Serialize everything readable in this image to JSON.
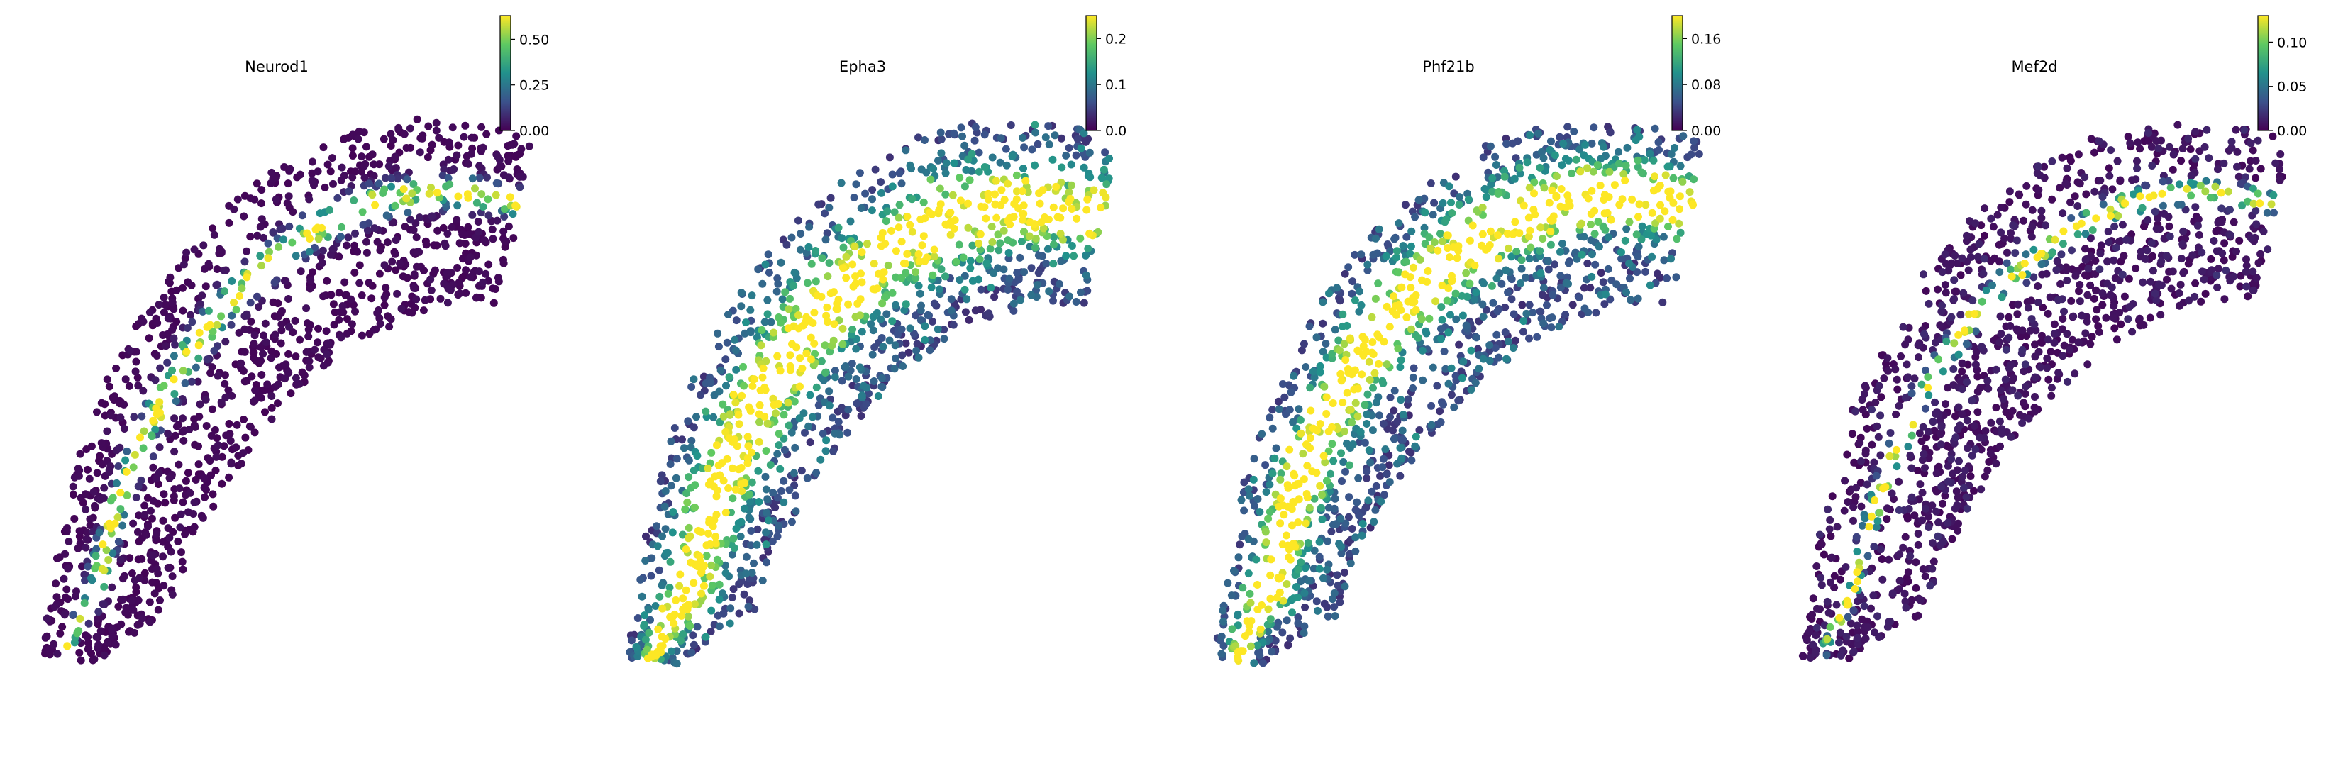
{
  "figure": {
    "panel_count": 4,
    "colormap": "viridis",
    "colormap_stops": [
      "#440154",
      "#3b528b",
      "#21918c",
      "#5ec962",
      "#fde725"
    ]
  },
  "chart_data": [
    {
      "type": "scatter",
      "title": "Neurod1",
      "xlabel": "",
      "ylabel": "",
      "axes_visible": false,
      "grid": false,
      "colorbar": {
        "range": [
          0,
          0.63
        ],
        "ticks": [
          0,
          0.25,
          0.5
        ],
        "tick_labels": [
          "0.00",
          "0.25",
          "0.50"
        ]
      },
      "pattern": {
        "kind": "ridge",
        "ridge_offset": 0.62,
        "ridge_width": 0.07,
        "peak": 0.63,
        "background": 0.005,
        "noise": 0.02
      }
    },
    {
      "type": "scatter",
      "title": "Epha3",
      "xlabel": "",
      "ylabel": "",
      "axes_visible": false,
      "grid": false,
      "colorbar": {
        "range": [
          0,
          0.25
        ],
        "ticks": [
          0,
          0.1,
          0.2
        ],
        "tick_labels": [
          "0.0",
          "0.1",
          "0.2"
        ]
      },
      "pattern": {
        "kind": "broad",
        "ridge_offset": 0.55,
        "ridge_width": 0.2,
        "peak": 0.24,
        "background": 0.03,
        "noise": 0.07
      }
    },
    {
      "type": "scatter",
      "title": "Phf21b",
      "xlabel": "",
      "ylabel": "",
      "axes_visible": false,
      "grid": false,
      "colorbar": {
        "range": [
          0,
          0.2
        ],
        "ticks": [
          0,
          0.08,
          0.16
        ],
        "tick_labels": [
          "0.00",
          "0.08",
          "0.16"
        ]
      },
      "pattern": {
        "kind": "broad",
        "ridge_offset": 0.6,
        "ridge_width": 0.17,
        "peak": 0.2,
        "background": 0.025,
        "noise": 0.055
      }
    },
    {
      "type": "scatter",
      "title": "Mef2d",
      "xlabel": "",
      "ylabel": "",
      "axes_visible": false,
      "grid": false,
      "colorbar": {
        "range": [
          0,
          0.13
        ],
        "ticks": [
          0,
          0.05,
          0.1
        ],
        "tick_labels": [
          "0.00",
          "0.05",
          "0.10"
        ]
      },
      "pattern": {
        "kind": "ridge",
        "ridge_offset": 0.62,
        "ridge_width": 0.05,
        "peak": 0.13,
        "background": 0.002,
        "noise": 0.012
      }
    }
  ]
}
